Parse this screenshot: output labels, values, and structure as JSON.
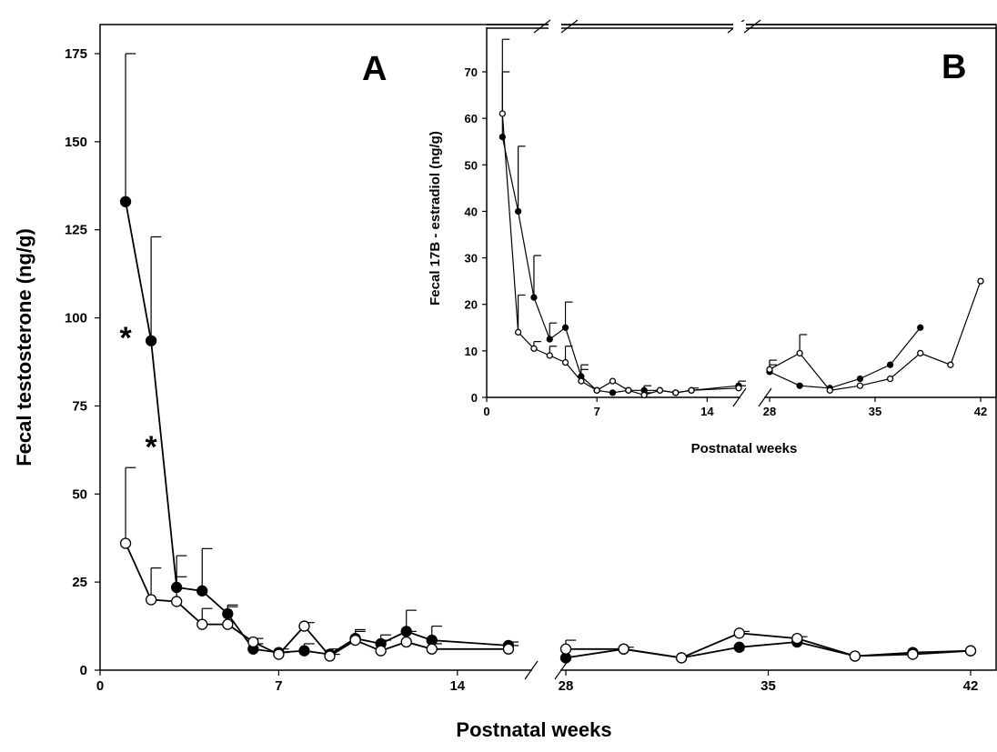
{
  "chart_data": [
    {
      "panel_label": "A",
      "type": "line",
      "xlabel": "Postnatal weeks",
      "ylabel": "Fecal testosterone (ng/g)",
      "ylim": [
        0,
        180
      ],
      "yticks": [
        "0",
        "25",
        "50",
        "75",
        "100",
        "125",
        "150",
        "175"
      ],
      "xticks": [
        "0",
        "7",
        "14",
        "28",
        "35",
        "42"
      ],
      "x_axis_break": "between 17 and 28",
      "annotations": [
        {
          "text": "*",
          "x": 1,
          "y": 96
        },
        {
          "text": "*",
          "x": 2,
          "y": 65
        }
      ],
      "series": [
        {
          "marker": "filled-circle",
          "segments": [
            {
              "x": [
                1,
                2,
                3,
                4,
                5,
                6,
                7,
                8,
                9,
                10,
                11,
                12,
                13,
                16
              ],
              "y": [
                133,
                93.5,
                23.5,
                22.5,
                16,
                6,
                5,
                5.5,
                4.5,
                9,
                7.5,
                11,
                8.5,
                7
              ],
              "err": [
                42,
                29.5,
                9,
                12,
                2.5,
                1.5,
                1,
                2,
                1.5,
                2,
                2.5,
                6,
                4,
                1
              ]
            },
            {
              "x": [
                28,
                30,
                32,
                34,
                36,
                38,
                40,
                42
              ],
              "y": [
                3.5,
                6,
                3.5,
                6.5,
                8,
                4,
                5,
                5.5
              ],
              "err": [
                0,
                0,
                0,
                0,
                0,
                0,
                0,
                0
              ]
            }
          ]
        },
        {
          "marker": "open-circle",
          "segments": [
            {
              "x": [
                1,
                2,
                3,
                4,
                5,
                6,
                7,
                8,
                9,
                10,
                11,
                12,
                13,
                16
              ],
              "y": [
                36,
                20,
                19.5,
                13,
                13,
                8,
                4.5,
                12.5,
                4,
                8.5,
                5.5,
                8,
                6,
                6
              ],
              "err": [
                21.5,
                9,
                7,
                4.5,
                5,
                1,
                0.5,
                1,
                0.5,
                3,
                3,
                3,
                1.5,
                1
              ]
            },
            {
              "x": [
                28,
                30,
                32,
                34,
                36,
                38,
                40,
                42
              ],
              "y": [
                6,
                6,
                3.5,
                10.5,
                9,
                4,
                4.5,
                5.5
              ],
              "err": [
                2.5,
                0.5,
                0,
                0.5,
                0.5,
                0,
                0,
                0
              ]
            }
          ]
        }
      ]
    },
    {
      "panel_label": "B",
      "type": "line",
      "xlabel": "Postnatal weeks",
      "ylabel": "Fecal 17B - estradiol (ng/g)",
      "ylim": [
        0,
        78
      ],
      "yticks": [
        "0",
        "10",
        "20",
        "30",
        "40",
        "50",
        "60",
        "70"
      ],
      "xticks": [
        "0",
        "7",
        "14",
        "28",
        "35",
        "42"
      ],
      "x_axis_break": "between 16 and 28",
      "series": [
        {
          "marker": "filled-circle",
          "segments": [
            {
              "x": [
                1,
                2,
                3,
                4,
                5,
                6,
                7,
                8,
                9,
                10,
                11,
                12,
                13,
                16
              ],
              "y": [
                56,
                40,
                21.5,
                12.5,
                15,
                4.5,
                1.5,
                1,
                1.5,
                1.5,
                1.5,
                1,
                1.5,
                2.5
              ],
              "err": [
                14,
                14,
                9,
                3.5,
                5.5,
                2.5,
                0,
                0,
                0,
                1,
                0,
                0,
                0.5,
                1
              ]
            },
            {
              "x": [
                28,
                30,
                32,
                34,
                36,
                38
              ],
              "y": [
                5.5,
                2.5,
                2,
                4,
                7,
                15
              ],
              "err": [
                2.5,
                0,
                0,
                0,
                0,
                0
              ]
            }
          ]
        },
        {
          "marker": "open-circle",
          "segments": [
            {
              "x": [
                1,
                2,
                3,
                4,
                5,
                6,
                7,
                8,
                9,
                10,
                11,
                12,
                13,
                16
              ],
              "y": [
                61,
                14,
                10.5,
                9,
                7.5,
                3.5,
                1.5,
                3.5,
                1.5,
                0.5,
                1.5,
                1,
                1.5,
                2
              ],
              "err": [
                16,
                8,
                1.5,
                2,
                3.5,
                2.5,
                0,
                0,
                0,
                0.5,
                0,
                0,
                0,
                0.5
              ]
            },
            {
              "x": [
                28,
                30,
                32,
                34,
                36,
                38,
                40,
                42
              ],
              "y": [
                6,
                9.5,
                1.5,
                2.5,
                4,
                9.5,
                7,
                25
              ],
              "err": [
                1,
                4,
                0,
                0,
                0,
                0,
                0,
                0
              ]
            }
          ]
        }
      ]
    }
  ]
}
